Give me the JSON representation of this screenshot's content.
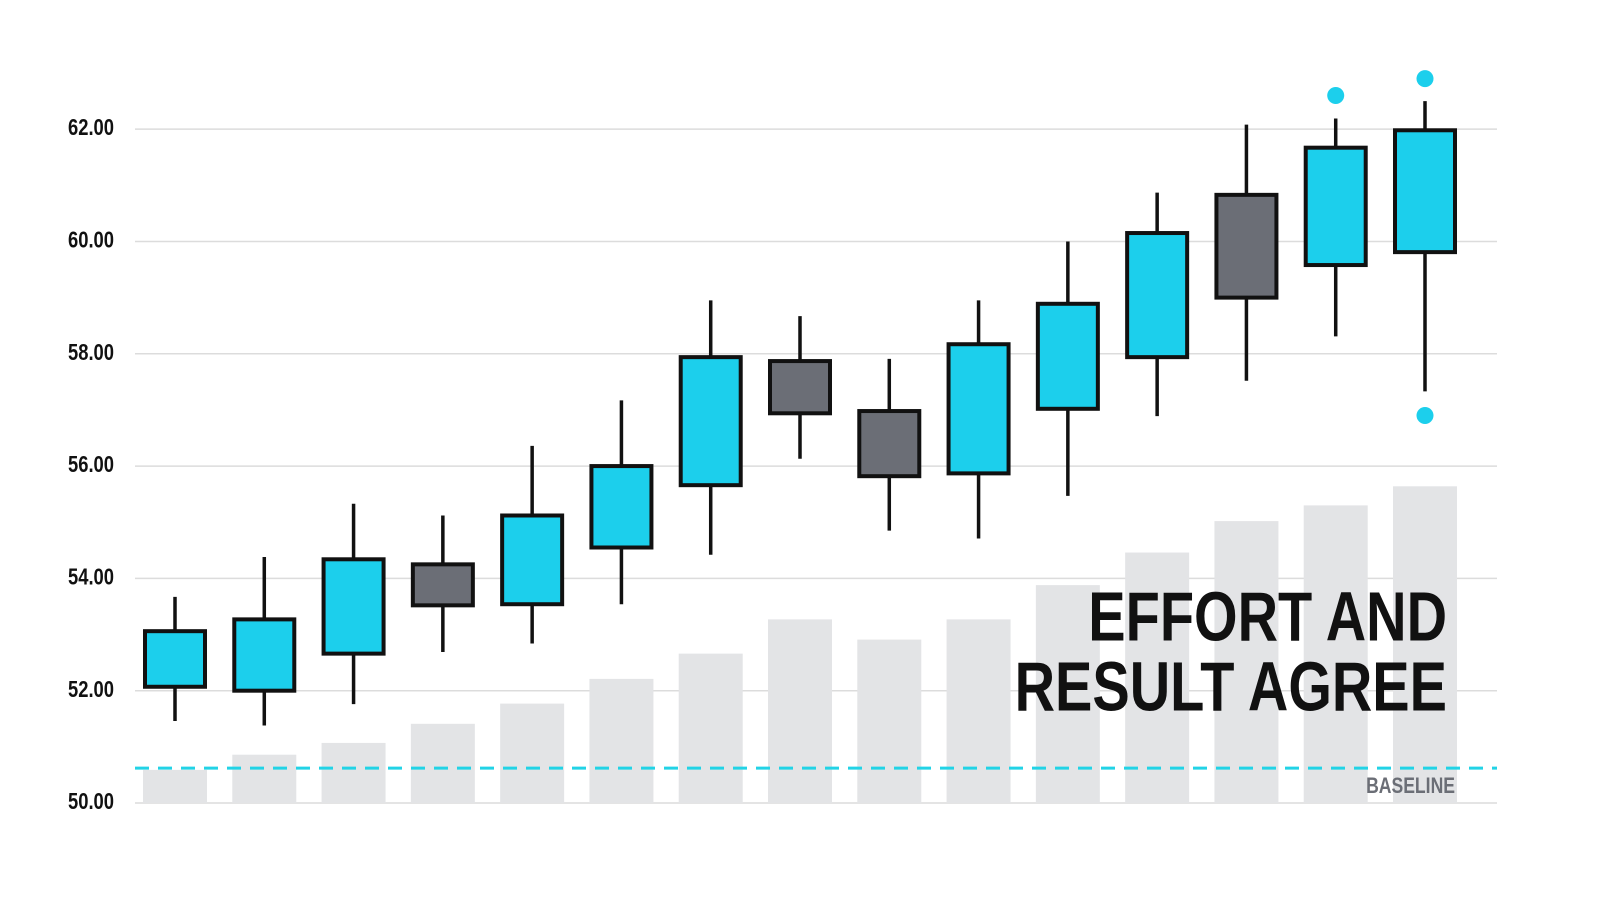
{
  "chart_data": {
    "type": "candlestick",
    "categories": [
      null,
      null,
      null,
      null,
      null,
      null,
      null,
      null,
      null,
      null,
      null,
      null,
      null,
      null,
      null
    ],
    "open": [
      52.07,
      52.0,
      52.66,
      54.25,
      53.54,
      54.55,
      55.66,
      57.87,
      56.98,
      55.87,
      57.02,
      57.94,
      60.83,
      59.58,
      59.81
    ],
    "close": [
      53.06,
      53.27,
      54.34,
      53.52,
      55.12,
      56.0,
      57.94,
      56.94,
      55.82,
      58.17,
      58.89,
      60.15,
      59.0,
      61.67,
      61.98
    ],
    "high": [
      53.67,
      54.38,
      55.33,
      55.12,
      56.36,
      57.17,
      58.95,
      58.67,
      57.91,
      58.95,
      60.0,
      60.87,
      62.08,
      62.19,
      62.5
    ],
    "low": [
      51.46,
      51.38,
      51.76,
      52.69,
      52.84,
      53.54,
      54.42,
      56.13,
      54.85,
      54.71,
      55.47,
      56.89,
      57.52,
      58.31,
      57.33
    ],
    "volume": [
      50.59,
      50.86,
      51.07,
      51.41,
      51.77,
      52.21,
      52.66,
      53.27,
      52.91,
      53.27,
      53.88,
      54.46,
      55.02,
      55.3,
      55.64
    ],
    "upper_markers": [
      null,
      null,
      null,
      null,
      null,
      null,
      null,
      null,
      null,
      null,
      null,
      null,
      null,
      62.6,
      62.9
    ],
    "lower_markers": [
      null,
      null,
      null,
      null,
      null,
      null,
      null,
      null,
      null,
      null,
      null,
      null,
      null,
      null,
      56.9
    ],
    "up_color": "#1ccfec",
    "down_color": "#6b6e76",
    "volume_color": "#e3e4e6",
    "marker_color": "#1ccfec",
    "baseline": 50.62,
    "baseline_label": "BASELINE",
    "baseline_color": "#22d3e6",
    "annotation": [
      "EFFORT AND",
      "RESULT AGREE"
    ],
    "ylim": [
      50,
      63
    ],
    "yticks": [
      {
        "value": 50,
        "label": "50.00"
      },
      {
        "value": 52,
        "label": "52.00"
      },
      {
        "value": 54,
        "label": "54.00"
      },
      {
        "value": 56,
        "label": "56.00"
      },
      {
        "value": 58,
        "label": "58.00"
      },
      {
        "value": 60,
        "label": "60.00"
      },
      {
        "value": 62,
        "label": "62.00"
      }
    ],
    "grid": true
  }
}
